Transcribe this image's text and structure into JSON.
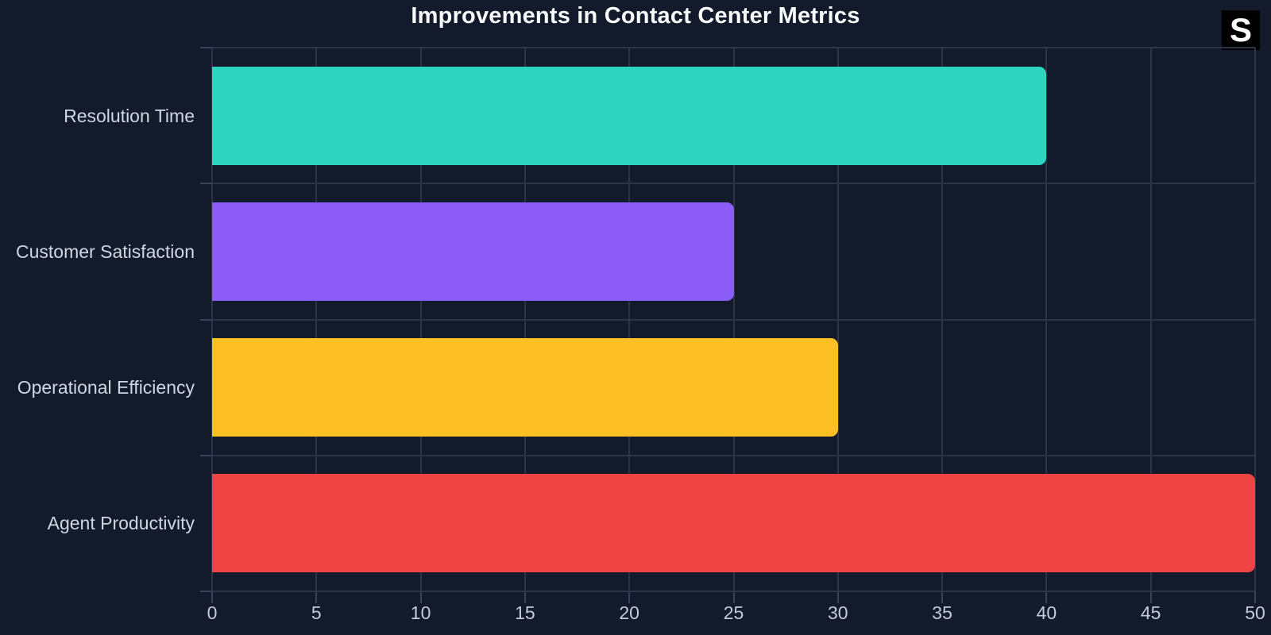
{
  "header": {
    "title": "Improvements in Contact Center Metrics",
    "badge_label": "S"
  },
  "theme": {
    "background": "#131a2b",
    "gridline": "#2c3447",
    "axis_tick": "#39425a",
    "title_color": "#f8fafc",
    "label_color": "#cfd6e2",
    "tick_label_color": "#c3cbd9",
    "badge_background": "#000000",
    "badge_text": "#ffffff"
  },
  "chart_data": {
    "type": "bar",
    "orientation": "horizontal",
    "title": "Improvements in Contact Center Metrics",
    "categories": [
      "Resolution Time",
      "Customer Satisfaction",
      "Operational Efficiency",
      "Agent Productivity"
    ],
    "series": [
      {
        "name": "Improvement",
        "values": [
          40,
          25,
          30,
          50
        ]
      }
    ],
    "colors": [
      "#2dd4bf",
      "#8b5cf6",
      "#fbbf24",
      "#ef4444"
    ],
    "xlim": [
      0,
      50
    ],
    "x_ticks": [
      0,
      5,
      10,
      15,
      20,
      25,
      30,
      35,
      40,
      45,
      50
    ],
    "grid": true,
    "legend": false,
    "xlabel": "",
    "ylabel": ""
  }
}
